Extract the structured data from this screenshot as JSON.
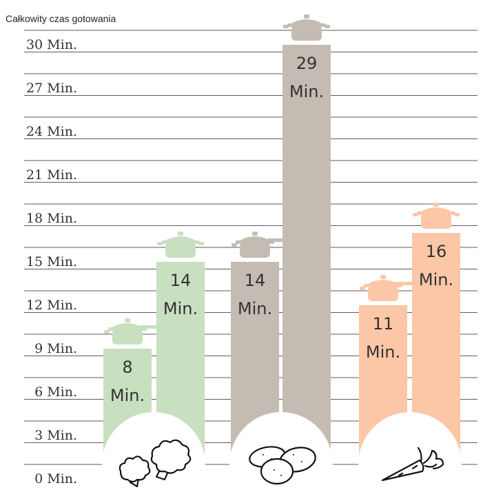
{
  "chart_data": {
    "type": "bar",
    "title": "Całkowity czas gotowania",
    "ylim": [
      0,
      31
    ],
    "yticks": [
      "0 Min.",
      "3 Min.",
      "6 Min.",
      "9 Min.",
      "12 Min.",
      "15 Min.",
      "18 Min.",
      "21 Min.",
      "24 Min.",
      "27 Min.",
      "30 Min."
    ],
    "grid": true,
    "groups": [
      {
        "icon": "broccoli-icon",
        "color": "#c8dfc0",
        "bars": [
          {
            "value": 8,
            "label_number": "8",
            "label_unit": "Min.",
            "pot_icon": "pressure-cooker-icon"
          },
          {
            "value": 14,
            "label_number": "14",
            "label_unit": "Min.",
            "pot_icon": "cooking-pot-icon"
          }
        ]
      },
      {
        "icon": "potatoes-icon",
        "color": "#c4bcb2",
        "bars": [
          {
            "value": 14,
            "label_number": "14",
            "label_unit": "Min.",
            "pot_icon": "pressure-cooker-icon"
          },
          {
            "value": 29,
            "label_number": "29",
            "label_unit": "Min.",
            "pot_icon": "cooking-pot-icon"
          }
        ]
      },
      {
        "icon": "carrot-icon",
        "color": "#fbc7a6",
        "bars": [
          {
            "value": 11,
            "label_number": "11",
            "label_unit": "Min.",
            "pot_icon": "pressure-cooker-icon"
          },
          {
            "value": 16,
            "label_number": "16",
            "label_unit": "Min.",
            "pot_icon": "cooking-pot-icon"
          }
        ]
      }
    ]
  }
}
